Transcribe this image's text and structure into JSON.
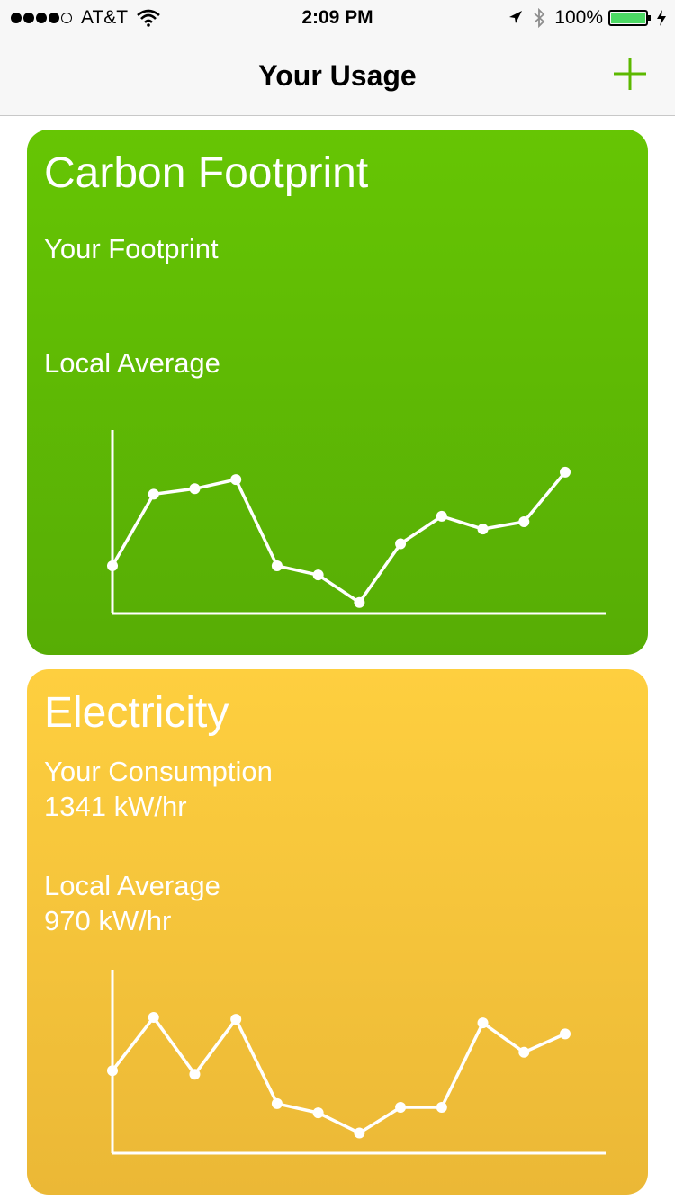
{
  "status_bar": {
    "signal_filled": 4,
    "signal_total": 5,
    "carrier": "AT&T",
    "time": "2:09 PM",
    "battery_text": "100%",
    "battery_level": 1.0,
    "icons": [
      "wifi-icon",
      "location-icon",
      "bluetooth-icon",
      "battery-icon",
      "charging-icon"
    ]
  },
  "nav": {
    "title": "Your Usage",
    "add_icon": "plus-icon",
    "accent": "#5cb800"
  },
  "cards": {
    "carbon": {
      "title": "Carbon Footprint",
      "your_label": "Your Footprint",
      "your_value": "",
      "avg_label": "Local Average",
      "avg_value": "",
      "color_top": "#66c504",
      "color_bottom": "#57ad05"
    },
    "electricity": {
      "title": "Electricity",
      "your_label": "Your Consumption",
      "your_value": "1341 kW/hr",
      "avg_label": "Local Average",
      "avg_value": "970 kW/hr",
      "color_top": "#fecf3f",
      "color_bottom": "#ebb836"
    }
  },
  "chart_data": [
    {
      "type": "line",
      "x": [
        1,
        2,
        3,
        4,
        5,
        6,
        7,
        8,
        9,
        10,
        11,
        12
      ],
      "values": [
        0.26,
        0.65,
        0.68,
        0.73,
        0.26,
        0.21,
        0.06,
        0.38,
        0.53,
        0.46,
        0.5,
        0.77
      ],
      "ylim": [
        0,
        1
      ],
      "grid": false
    },
    {
      "type": "line",
      "x": [
        1,
        2,
        3,
        4,
        5,
        6,
        7,
        8,
        9,
        10,
        11,
        12
      ],
      "values": [
        0.45,
        0.74,
        0.43,
        0.73,
        0.27,
        0.22,
        0.11,
        0.25,
        0.25,
        0.71,
        0.55,
        0.65
      ],
      "ylim": [
        0,
        1
      ],
      "grid": false
    }
  ]
}
